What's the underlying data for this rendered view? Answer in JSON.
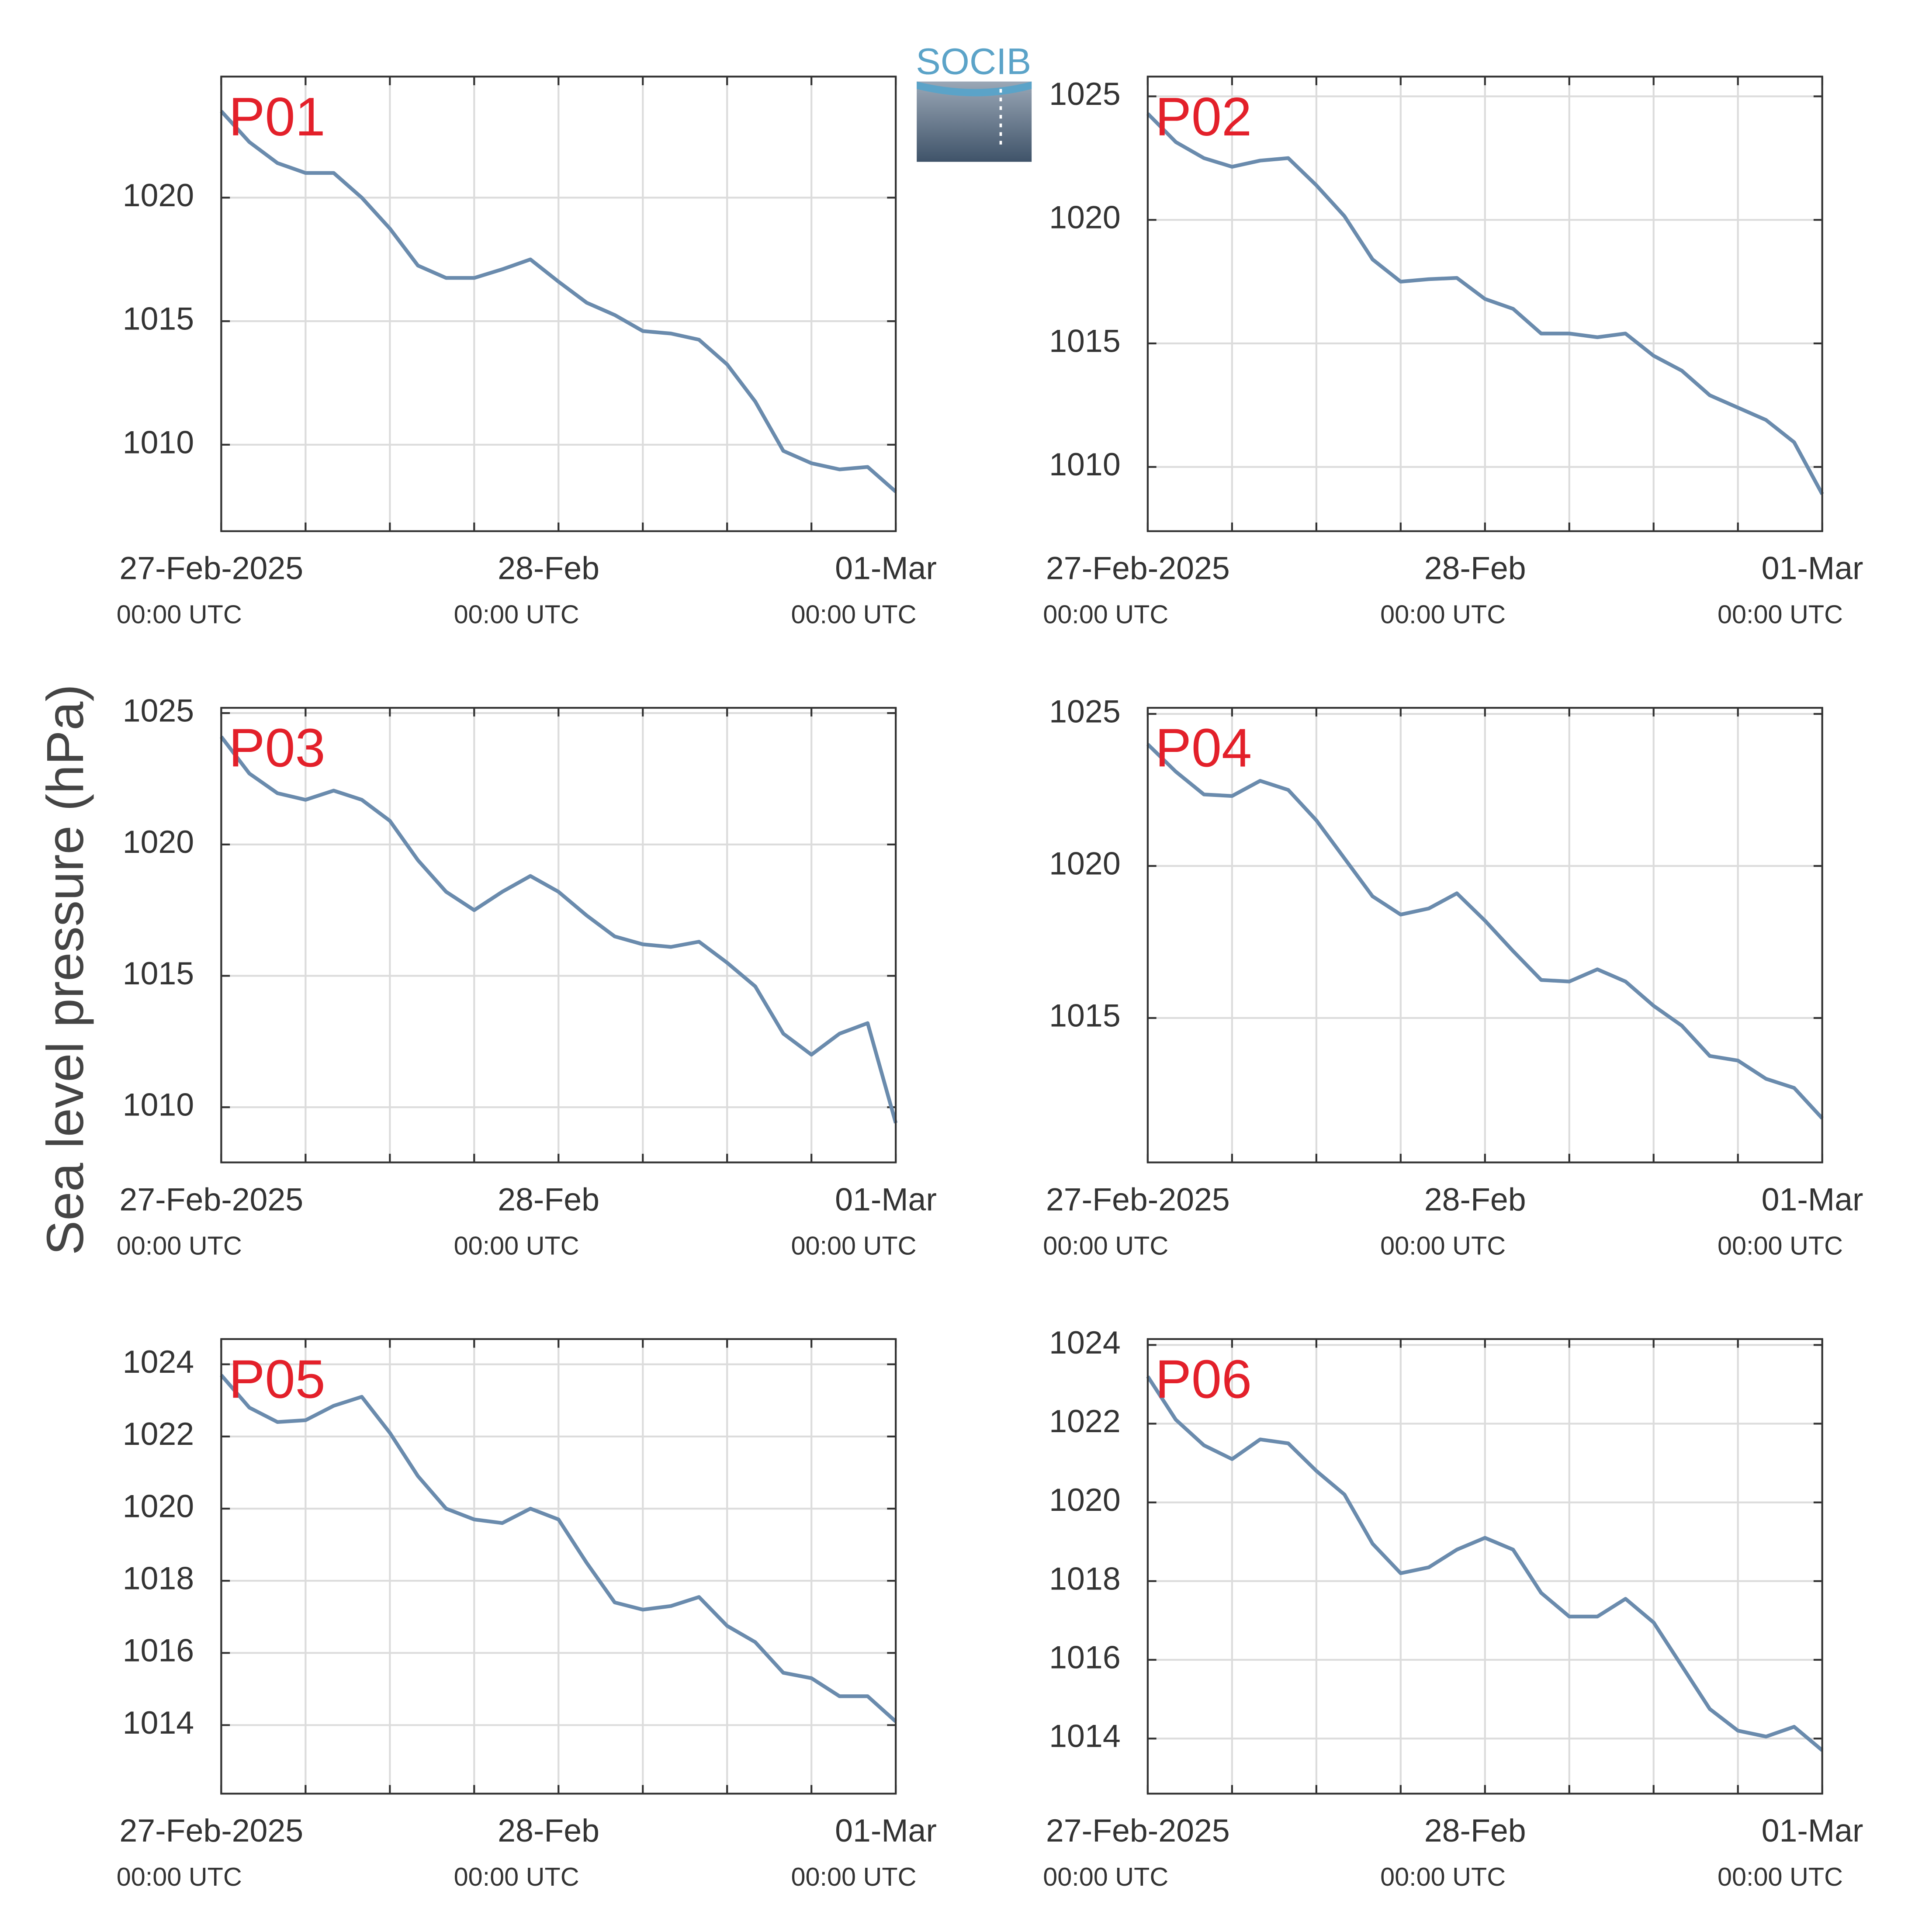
{
  "logo": "SOCIB",
  "ylabel": "Sea level pressure (hPa)",
  "chart_data": [
    {
      "type": "line",
      "title": "P01",
      "color": "#6a8bad",
      "grid": true,
      "x": [
        "2025-02-27T00:00",
        "2025-02-27T02:00",
        "2025-02-27T04:00",
        "2025-02-27T06:00",
        "2025-02-27T08:00",
        "2025-02-27T10:00",
        "2025-02-27T12:00",
        "2025-02-27T14:00",
        "2025-02-27T16:00",
        "2025-02-27T18:00",
        "2025-02-27T20:00",
        "2025-02-27T22:00",
        "2025-02-28T00:00",
        "2025-02-28T02:00",
        "2025-02-28T04:00",
        "2025-02-28T06:00",
        "2025-02-28T08:00",
        "2025-02-28T10:00",
        "2025-02-28T12:00",
        "2025-02-28T14:00",
        "2025-02-28T16:00",
        "2025-02-28T18:00",
        "2025-02-28T20:00",
        "2025-02-28T22:00",
        "2025-03-01T00:00"
      ],
      "values": [
        1023.5,
        1022.25,
        1021.4,
        1021.0,
        1021.0,
        1020.0,
        1018.75,
        1017.25,
        1016.75,
        1016.75,
        1017.1,
        1017.5,
        1016.6,
        1015.75,
        1015.25,
        1014.6,
        1014.5,
        1014.25,
        1013.25,
        1011.75,
        1009.75,
        1009.25,
        1009.0,
        1009.1,
        1008.1
      ],
      "xlim": [
        "2025-02-27T00:00",
        "2025-03-01T00:00"
      ],
      "xticks": [
        {
          "value": "2025-02-27T00:00",
          "label": "27-Feb-2025",
          "time": "00:00 UTC"
        },
        "2025-02-27T06:00",
        "2025-02-27T12:00",
        "2025-02-27T18:00",
        {
          "value": "2025-02-28T00:00",
          "label": "28-Feb",
          "time": "00:00 UTC"
        },
        "2025-02-28T06:00",
        "2025-02-28T12:00",
        "2025-02-28T18:00",
        {
          "value": "2025-03-01T00:00",
          "label": "01-Mar",
          "time": "00:00 UTC"
        }
      ],
      "ylim": [
        1006.5,
        1024.9
      ],
      "yticks": [
        1010,
        1015,
        1020
      ]
    },
    {
      "type": "line",
      "title": "P02",
      "color": "#6a8bad",
      "grid": true,
      "x": [
        "2025-02-27T00:00",
        "2025-02-27T02:00",
        "2025-02-27T04:00",
        "2025-02-27T06:00",
        "2025-02-27T08:00",
        "2025-02-27T10:00",
        "2025-02-27T12:00",
        "2025-02-27T14:00",
        "2025-02-27T16:00",
        "2025-02-27T18:00",
        "2025-02-27T20:00",
        "2025-02-27T22:00",
        "2025-02-28T00:00",
        "2025-02-28T02:00",
        "2025-02-28T04:00",
        "2025-02-28T06:00",
        "2025-02-28T08:00",
        "2025-02-28T10:00",
        "2025-02-28T12:00",
        "2025-02-28T14:00",
        "2025-02-28T16:00",
        "2025-02-28T18:00",
        "2025-02-28T20:00",
        "2025-02-28T22:00",
        "2025-03-01T00:00"
      ],
      "values": [
        1024.3,
        1023.15,
        1022.5,
        1022.15,
        1022.4,
        1022.5,
        1021.4,
        1020.15,
        1018.4,
        1017.5,
        1017.6,
        1017.65,
        1016.8,
        1016.4,
        1015.4,
        1015.4,
        1015.25,
        1015.4,
        1014.5,
        1013.9,
        1012.9,
        1012.4,
        1011.9,
        1011.0,
        1008.9
      ],
      "xlim": [
        "2025-02-27T00:00",
        "2025-03-01T00:00"
      ],
      "xticks": [
        {
          "value": "2025-02-27T00:00",
          "label": "27-Feb-2025",
          "time": "00:00 UTC"
        },
        "2025-02-27T06:00",
        "2025-02-27T12:00",
        "2025-02-27T18:00",
        {
          "value": "2025-02-28T00:00",
          "label": "28-Feb",
          "time": "00:00 UTC"
        },
        "2025-02-28T06:00",
        "2025-02-28T12:00",
        "2025-02-28T18:00",
        {
          "value": "2025-03-01T00:00",
          "label": "01-Mar",
          "time": "00:00 UTC"
        }
      ],
      "ylim": [
        1007.4,
        1025.8
      ],
      "yticks": [
        1010,
        1015,
        1020,
        1025
      ]
    },
    {
      "type": "line",
      "title": "P03",
      "color": "#6a8bad",
      "grid": true,
      "x": [
        "2025-02-27T00:00",
        "2025-02-27T02:00",
        "2025-02-27T04:00",
        "2025-02-27T06:00",
        "2025-02-27T08:00",
        "2025-02-27T10:00",
        "2025-02-27T12:00",
        "2025-02-27T14:00",
        "2025-02-27T16:00",
        "2025-02-27T18:00",
        "2025-02-27T20:00",
        "2025-02-27T22:00",
        "2025-02-28T00:00",
        "2025-02-28T02:00",
        "2025-02-28T04:00",
        "2025-02-28T06:00",
        "2025-02-28T08:00",
        "2025-02-28T10:00",
        "2025-02-28T12:00",
        "2025-02-28T14:00",
        "2025-02-28T16:00",
        "2025-02-28T18:00",
        "2025-02-28T20:00",
        "2025-02-28T22:00",
        "2025-03-01T00:00"
      ],
      "values": [
        1024.1,
        1022.7,
        1021.95,
        1021.7,
        1022.05,
        1021.7,
        1020.9,
        1019.4,
        1018.2,
        1017.5,
        1018.2,
        1018.8,
        1018.2,
        1017.3,
        1016.5,
        1016.2,
        1016.1,
        1016.3,
        1015.5,
        1014.6,
        1012.8,
        1012.0,
        1012.8,
        1013.2,
        1009.4
      ],
      "xlim": [
        "2025-02-27T00:00",
        "2025-03-01T00:00"
      ],
      "xticks": [
        {
          "value": "2025-02-27T00:00",
          "label": "27-Feb-2025",
          "time": "00:00 UTC"
        },
        "2025-02-27T06:00",
        "2025-02-27T12:00",
        "2025-02-27T18:00",
        {
          "value": "2025-02-28T00:00",
          "label": "28-Feb",
          "time": "00:00 UTC"
        },
        "2025-02-28T06:00",
        "2025-02-28T12:00",
        "2025-02-28T18:00",
        {
          "value": "2025-03-01T00:00",
          "label": "01-Mar",
          "time": "00:00 UTC"
        }
      ],
      "ylim": [
        1007.9,
        1025.2
      ],
      "yticks": [
        1010,
        1015,
        1020,
        1025
      ]
    },
    {
      "type": "line",
      "title": "P04",
      "color": "#6a8bad",
      "grid": true,
      "x": [
        "2025-02-27T00:00",
        "2025-02-27T02:00",
        "2025-02-27T04:00",
        "2025-02-27T06:00",
        "2025-02-27T08:00",
        "2025-02-27T10:00",
        "2025-02-27T12:00",
        "2025-02-27T14:00",
        "2025-02-27T16:00",
        "2025-02-27T18:00",
        "2025-02-27T20:00",
        "2025-02-27T22:00",
        "2025-02-28T00:00",
        "2025-02-28T02:00",
        "2025-02-28T04:00",
        "2025-02-28T06:00",
        "2025-02-28T08:00",
        "2025-02-28T10:00",
        "2025-02-28T12:00",
        "2025-02-28T14:00",
        "2025-02-28T16:00",
        "2025-02-28T18:00",
        "2025-02-28T20:00",
        "2025-02-28T22:00",
        "2025-03-01T00:00"
      ],
      "values": [
        1024.0,
        1023.1,
        1022.35,
        1022.3,
        1022.8,
        1022.5,
        1021.5,
        1020.25,
        1019.0,
        1018.4,
        1018.6,
        1019.1,
        1018.2,
        1017.2,
        1016.25,
        1016.2,
        1016.6,
        1016.2,
        1015.4,
        1014.75,
        1013.75,
        1013.6,
        1013.0,
        1012.7,
        1011.7
      ],
      "xlim": [
        "2025-02-27T00:00",
        "2025-03-01T00:00"
      ],
      "xticks": [
        {
          "value": "2025-02-27T00:00",
          "label": "27-Feb-2025",
          "time": "00:00 UTC"
        },
        "2025-02-27T06:00",
        "2025-02-27T12:00",
        "2025-02-27T18:00",
        {
          "value": "2025-02-28T00:00",
          "label": "28-Feb",
          "time": "00:00 UTC"
        },
        "2025-02-28T06:00",
        "2025-02-28T12:00",
        "2025-02-28T18:00",
        {
          "value": "2025-03-01T00:00",
          "label": "01-Mar",
          "time": "00:00 UTC"
        }
      ],
      "ylim": [
        1010.25,
        1025.2
      ],
      "yticks": [
        1015,
        1020,
        1025
      ]
    },
    {
      "type": "line",
      "title": "P05",
      "color": "#6a8bad",
      "grid": true,
      "x": [
        "2025-02-27T00:00",
        "2025-02-27T02:00",
        "2025-02-27T04:00",
        "2025-02-27T06:00",
        "2025-02-27T08:00",
        "2025-02-27T10:00",
        "2025-02-27T12:00",
        "2025-02-27T14:00",
        "2025-02-27T16:00",
        "2025-02-27T18:00",
        "2025-02-27T20:00",
        "2025-02-27T22:00",
        "2025-02-28T00:00",
        "2025-02-28T02:00",
        "2025-02-28T04:00",
        "2025-02-28T06:00",
        "2025-02-28T08:00",
        "2025-02-28T10:00",
        "2025-02-28T12:00",
        "2025-02-28T14:00",
        "2025-02-28T16:00",
        "2025-02-28T18:00",
        "2025-02-28T20:00",
        "2025-02-28T22:00",
        "2025-03-01T00:00"
      ],
      "values": [
        1023.7,
        1022.8,
        1022.4,
        1022.45,
        1022.85,
        1023.1,
        1022.1,
        1020.9,
        1020.0,
        1019.7,
        1019.6,
        1020.0,
        1019.7,
        1018.5,
        1017.4,
        1017.2,
        1017.3,
        1017.55,
        1016.75,
        1016.3,
        1015.45,
        1015.3,
        1014.8,
        1014.8,
        1014.1
      ],
      "xlim": [
        "2025-02-27T00:00",
        "2025-03-01T00:00"
      ],
      "xticks": [
        {
          "value": "2025-02-27T00:00",
          "label": "27-Feb-2025",
          "time": "00:00 UTC"
        },
        "2025-02-27T06:00",
        "2025-02-27T12:00",
        "2025-02-27T18:00",
        {
          "value": "2025-02-28T00:00",
          "label": "28-Feb",
          "time": "00:00 UTC"
        },
        "2025-02-28T06:00",
        "2025-02-28T12:00",
        "2025-02-28T18:00",
        {
          "value": "2025-03-01T00:00",
          "label": "01-Mar",
          "time": "00:00 UTC"
        }
      ],
      "ylim": [
        1012.1,
        1024.7
      ],
      "yticks": [
        1014,
        1016,
        1018,
        1020,
        1022,
        1024
      ]
    },
    {
      "type": "line",
      "title": "P06",
      "color": "#6a8bad",
      "grid": true,
      "x": [
        "2025-02-27T00:00",
        "2025-02-27T02:00",
        "2025-02-27T04:00",
        "2025-02-27T06:00",
        "2025-02-27T08:00",
        "2025-02-27T10:00",
        "2025-02-27T12:00",
        "2025-02-27T14:00",
        "2025-02-27T16:00",
        "2025-02-27T18:00",
        "2025-02-27T20:00",
        "2025-02-27T22:00",
        "2025-02-28T00:00",
        "2025-02-28T02:00",
        "2025-02-28T04:00",
        "2025-02-28T06:00",
        "2025-02-28T08:00",
        "2025-02-28T10:00",
        "2025-02-28T12:00",
        "2025-02-28T14:00",
        "2025-02-28T16:00",
        "2025-02-28T18:00",
        "2025-02-28T20:00",
        "2025-02-28T22:00",
        "2025-03-01T00:00"
      ],
      "values": [
        1023.2,
        1022.1,
        1021.45,
        1021.1,
        1021.6,
        1021.5,
        1020.8,
        1020.2,
        1018.95,
        1018.2,
        1018.35,
        1018.8,
        1019.1,
        1018.8,
        1017.7,
        1017.1,
        1017.1,
        1017.55,
        1016.95,
        1015.85,
        1014.75,
        1014.2,
        1014.05,
        1014.3,
        1013.7
      ],
      "xlim": [
        "2025-02-27T00:00",
        "2025-03-01T00:00"
      ],
      "xticks": [
        {
          "value": "2025-02-27T00:00",
          "label": "27-Feb-2025",
          "time": "00:00 UTC"
        },
        "2025-02-27T06:00",
        "2025-02-27T12:00",
        "2025-02-27T18:00",
        {
          "value": "2025-02-28T00:00",
          "label": "28-Feb",
          "time": "00:00 UTC"
        },
        "2025-02-28T06:00",
        "2025-02-28T12:00",
        "2025-02-28T18:00",
        {
          "value": "2025-03-01T00:00",
          "label": "01-Mar",
          "time": "00:00 UTC"
        }
      ],
      "ylim": [
        1012.6,
        1024.15
      ],
      "yticks": [
        1014,
        1016,
        1018,
        1020,
        1022,
        1024
      ]
    }
  ]
}
